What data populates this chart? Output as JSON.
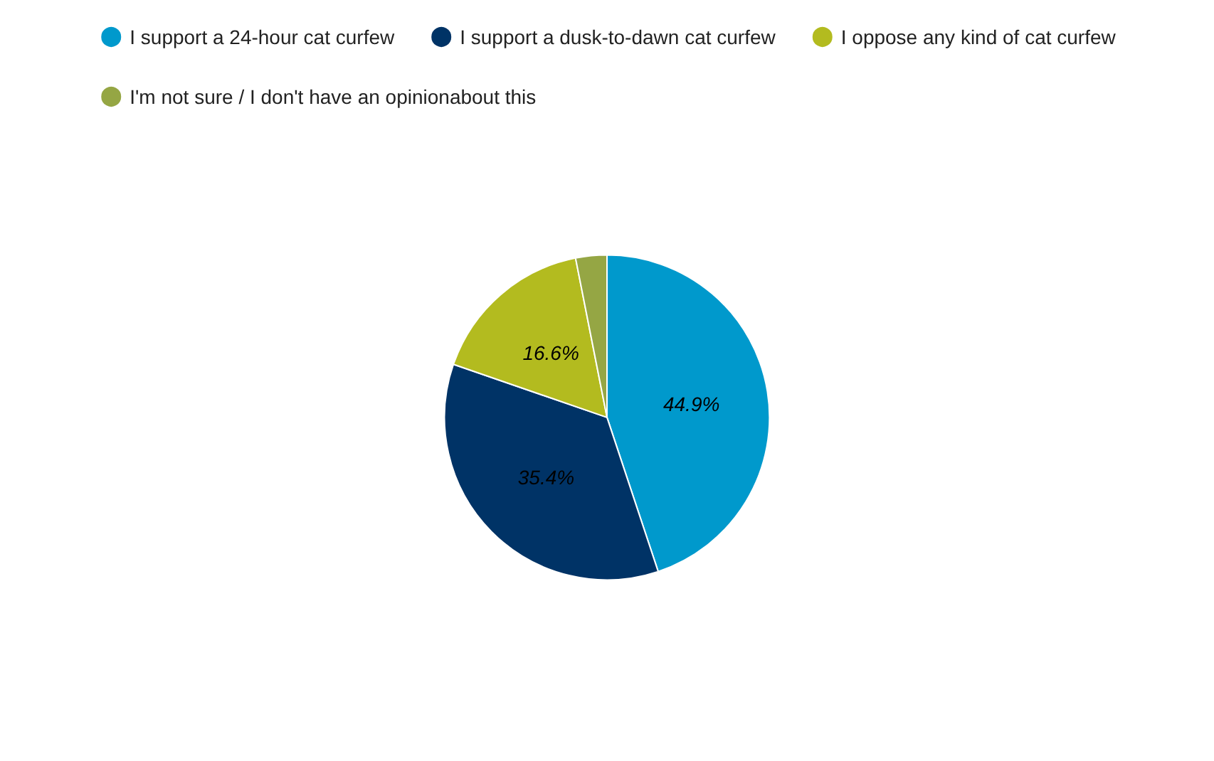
{
  "chart_data": {
    "type": "pie",
    "categories": [
      "I support a 24-hour cat curfew",
      "I support a dusk-to-dawn cat curfew",
      "I oppose any kind of cat curfew",
      "I'm not sure / I don't have an opinionabout this"
    ],
    "values": [
      44.9,
      35.4,
      16.6,
      3.1
    ],
    "colors": [
      "#0099cc",
      "#003366",
      "#b3bb1f",
      "#95a644"
    ],
    "value_labels": [
      "44.9%",
      "35.4%",
      "16.6%",
      null
    ],
    "legend": "top"
  }
}
